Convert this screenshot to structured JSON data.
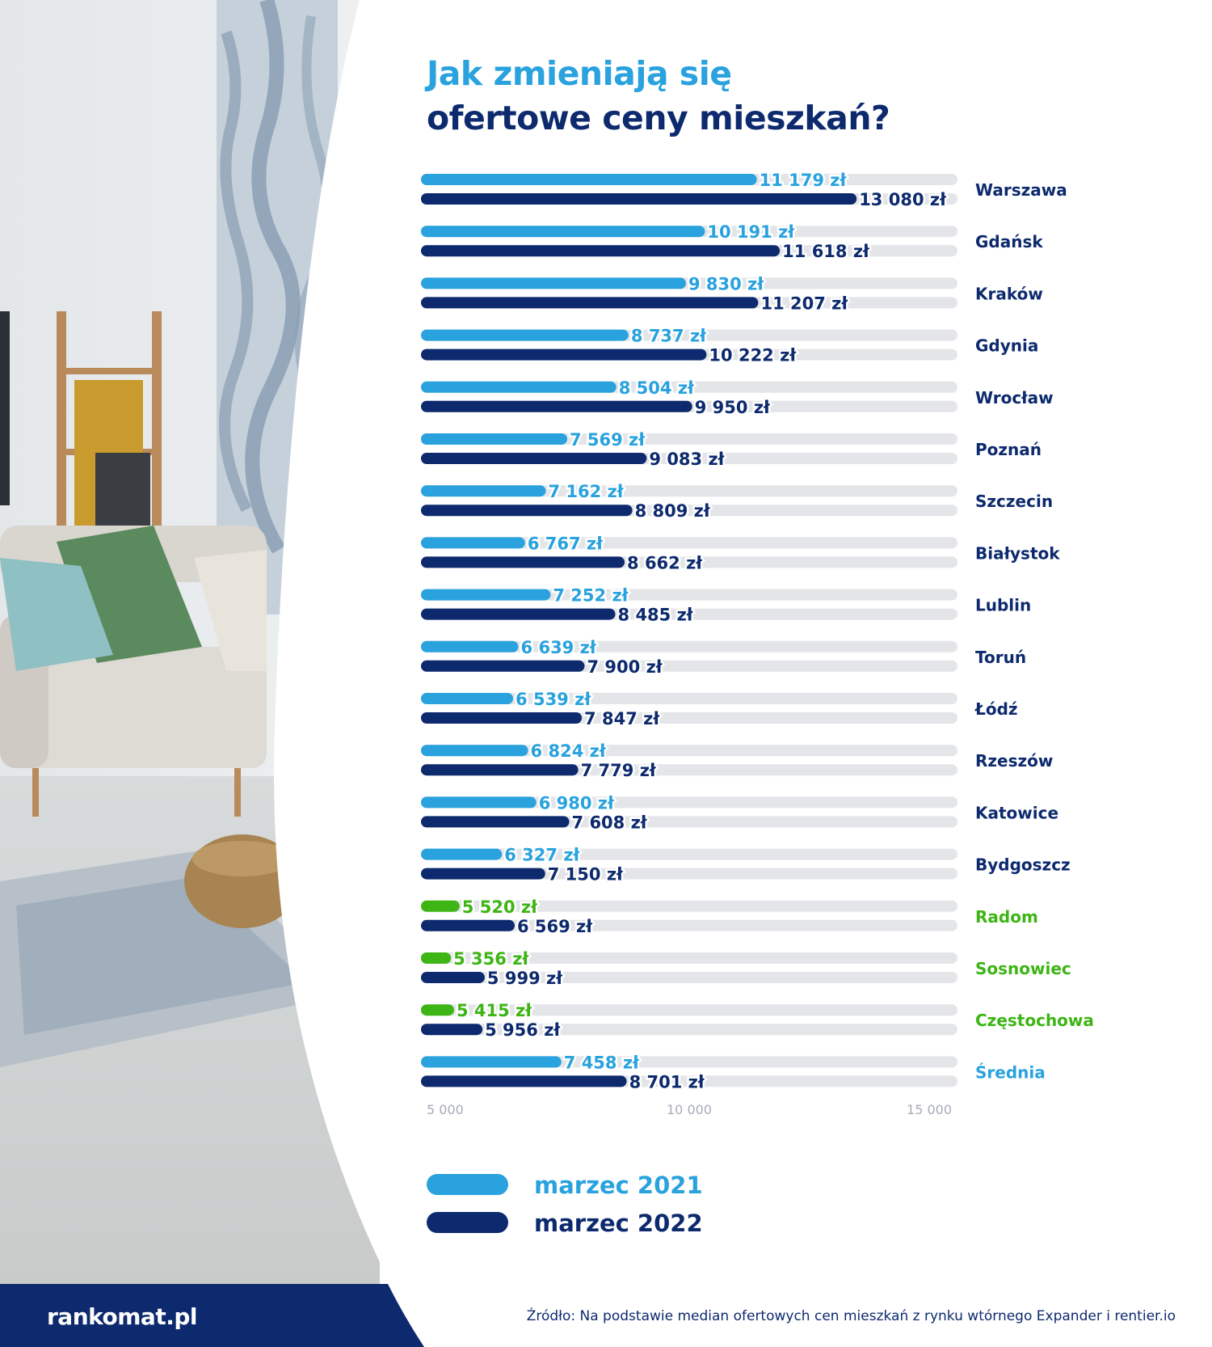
{
  "title": {
    "line1": "Jak zmieniają się",
    "line2": "ofertowe ceny mieszkań?"
  },
  "colors": {
    "series_2021": "#29a2de",
    "series_2022": "#0d2a6e",
    "highlight": "#3db515",
    "track": "#e4e5e8",
    "axis_text": "#a7acb8"
  },
  "chart_data": {
    "type": "bar",
    "orientation": "horizontal",
    "categories": [
      "Warszawa",
      "Gdańsk",
      "Kraków",
      "Gdynia",
      "Wrocław",
      "Poznań",
      "Szczecin",
      "Białystok",
      "Lublin",
      "Toruń",
      "Łódź",
      "Rzeszów",
      "Katowice",
      "Bydgoszcz",
      "Radom",
      "Sosnowiec",
      "Częstochowa",
      "Średnia"
    ],
    "highlighted_categories": [
      "Radom",
      "Sosnowiec",
      "Częstochowa"
    ],
    "average_category": "Średnia",
    "series": [
      {
        "name": "marzec 2021",
        "values": [
          11179,
          10191,
          9830,
          8737,
          8504,
          7569,
          7162,
          6767,
          7252,
          6639,
          6539,
          6824,
          6980,
          6327,
          5520,
          5356,
          5415,
          7458
        ],
        "labels": [
          "11 179 zł",
          "10 191 zł",
          "9 830 zł",
          "8 737 zł",
          "8 504 zł",
          "7 569 zł",
          "7 162 zł",
          "6 767 zł",
          "7 252 zł",
          "6 639 zł",
          "6 539 zł",
          "6 824 zł",
          "6 980 zł",
          "6 327 zł",
          "5 520 zł",
          "5 356 zł",
          "5 415 zł",
          "7 458 zł"
        ]
      },
      {
        "name": "marzec 2022",
        "values": [
          13080,
          11618,
          11207,
          10222,
          9950,
          9083,
          8809,
          8662,
          8485,
          7900,
          7847,
          7779,
          7608,
          7150,
          6569,
          5999,
          5956,
          8701
        ],
        "labels": [
          "13 080 zł",
          "11 618 zł",
          "11 207 zł",
          "10 222 zł",
          "9 950 zł",
          "9 083 zł",
          "8 809 zł",
          "8 662 zł",
          "8 485 zł",
          "7 900 zł",
          "7 847 zł",
          "7 779 zł",
          "7 608 zł",
          "7 150 zł",
          "6 569 zł",
          "5 999 zł",
          "5 956 zł",
          "8 701 zł"
        ]
      }
    ],
    "xlim": [
      5000,
      15000
    ],
    "ticks": [
      5000,
      10000,
      15000
    ],
    "tick_labels": [
      "5 000",
      "10 000",
      "15 000"
    ],
    "legend_position": "bottom-left",
    "grid": false
  },
  "legend": [
    {
      "label": "marzec 2021"
    },
    {
      "label": "marzec 2022"
    }
  ],
  "footer": {
    "brand": "rankomat.pl",
    "source": "Źródło: Na podstawie median ofertowych cen mieszkań z rynku wtórnego Expander i rentier.io"
  }
}
